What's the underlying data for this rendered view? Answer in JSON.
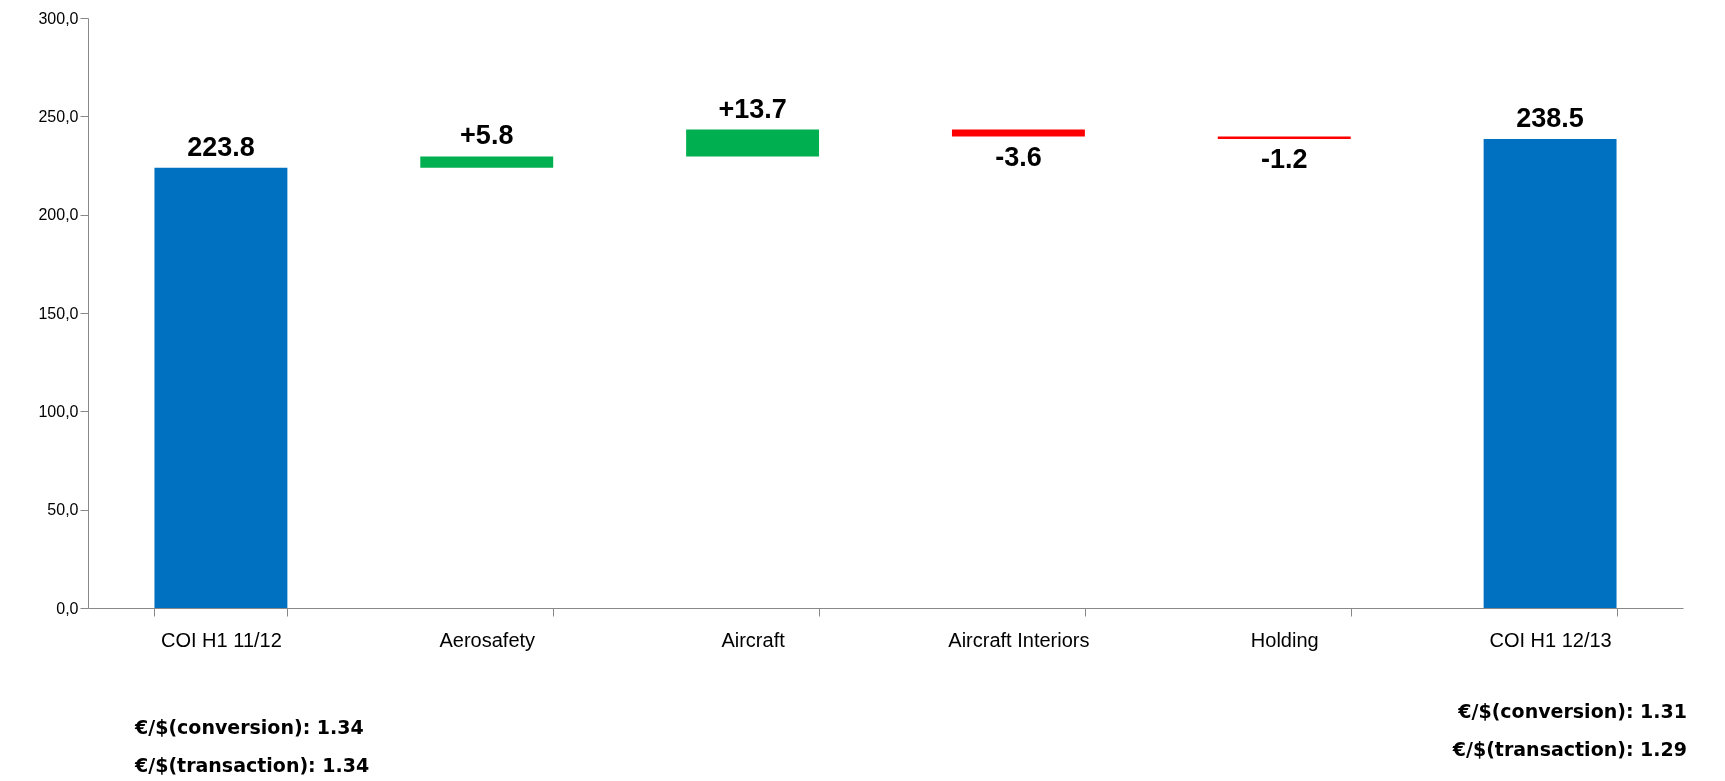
{
  "chart_data": {
    "type": "bar",
    "categories": [
      "COI H1 11/12",
      "Aerosafety",
      "Aircraft",
      "Aircraft Interiors",
      "Holding",
      "COI H1 12/13"
    ],
    "values": [
      223.8,
      5.8,
      13.7,
      -3.6,
      -1.2,
      238.5
    ],
    "base": [
      0,
      223.8,
      229.6,
      243.3,
      239.7,
      0
    ],
    "colors": [
      "#0070c0",
      "#00b050",
      "#00b050",
      "#ff0000",
      "#ff0000",
      "#0070c0"
    ],
    "value_labels": [
      "223.8",
      "+5.8",
      "+13.7",
      "-3.6",
      "-1.2",
      "238.5"
    ],
    "ylim": [
      0,
      300
    ],
    "yticks": [
      {
        "value": 0,
        "label": "0,0"
      },
      {
        "value": 50,
        "label": "50,0"
      },
      {
        "value": 100,
        "label": "100,0"
      },
      {
        "value": 150,
        "label": "150,0"
      },
      {
        "value": 200,
        "label": "200,0"
      },
      {
        "value": 250,
        "label": "250,0"
      },
      {
        "value": 300,
        "label": "300,0"
      }
    ],
    "grid": false,
    "annotations": [
      "€/$(conversion): 1.34",
      "€/$(transaction): 1.34",
      "€/$(conversion): 1.31",
      "€/$(transaction): 1.29"
    ]
  }
}
